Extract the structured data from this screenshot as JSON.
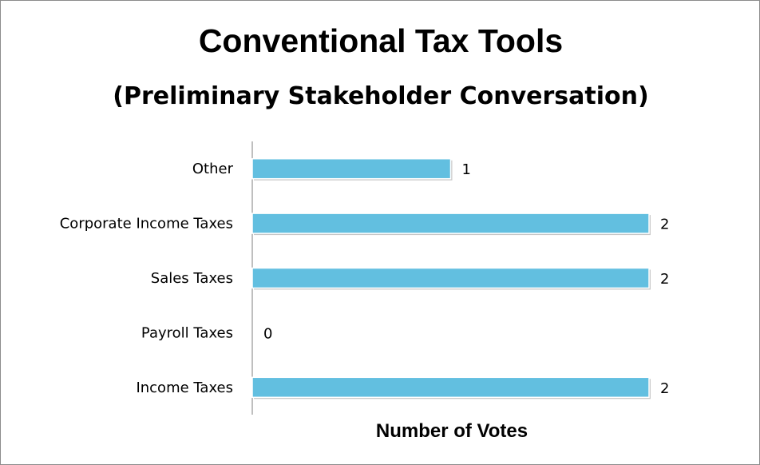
{
  "chart_data": {
    "type": "bar",
    "orientation": "horizontal",
    "title": "Conventional Tax Tools",
    "subtitle": "(Preliminary Stakeholder Conversation)",
    "xlabel": "Number of Votes",
    "ylabel": "",
    "categories": [
      "Other",
      "Corporate Income Taxes",
      "Sales Taxes",
      "Payroll Taxes",
      "Income Taxes"
    ],
    "values": [
      1,
      2,
      2,
      0,
      2
    ],
    "xlim": [
      0,
      2
    ],
    "grid": false,
    "legend": "none",
    "bar_color": "#62bfe0"
  }
}
